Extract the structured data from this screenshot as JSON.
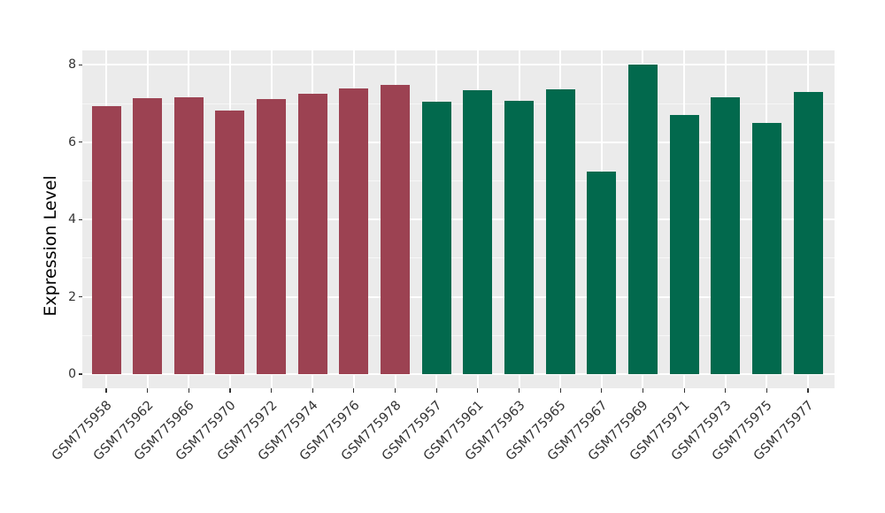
{
  "chart_data": {
    "type": "bar",
    "title": "",
    "xlabel": "",
    "ylabel": "Expression Level",
    "ylim": [
      0,
      8.4
    ],
    "yticks": [
      0,
      2,
      4,
      6,
      8
    ],
    "ytick_labels": [
      "0",
      "2",
      "4",
      "6",
      "8"
    ],
    "yminor": [
      1,
      3,
      5,
      7
    ],
    "grid": "on",
    "legend": "none",
    "categories": [
      "GSM775958",
      "GSM775962",
      "GSM775966",
      "GSM775970",
      "GSM775972",
      "GSM775974",
      "GSM775976",
      "GSM775978",
      "GSM775957",
      "GSM775961",
      "GSM775963",
      "GSM775965",
      "GSM775967",
      "GSM775969",
      "GSM775971",
      "GSM775973",
      "GSM775975",
      "GSM775977"
    ],
    "values": [
      6.93,
      7.14,
      7.17,
      6.81,
      7.12,
      7.26,
      7.4,
      7.49,
      7.05,
      7.34,
      7.08,
      7.37,
      5.24,
      8.0,
      6.7,
      7.16,
      6.51,
      7.31
    ],
    "groups": [
      "a",
      "a",
      "a",
      "a",
      "a",
      "a",
      "a",
      "a",
      "b",
      "b",
      "b",
      "b",
      "b",
      "b",
      "b",
      "b",
      "b",
      "b"
    ],
    "group_colors": {
      "a": "#9C4252",
      "b": "#02694D"
    },
    "colors": {
      "panel_background": "#EBEBEB",
      "grid_major": "#FFFFFF",
      "grid_minor": "#F7F7F7",
      "tick_mark": "#333333",
      "tick_label": "#333333",
      "axis_title": "#000000",
      "figure_background": "#FFFFFF"
    }
  }
}
